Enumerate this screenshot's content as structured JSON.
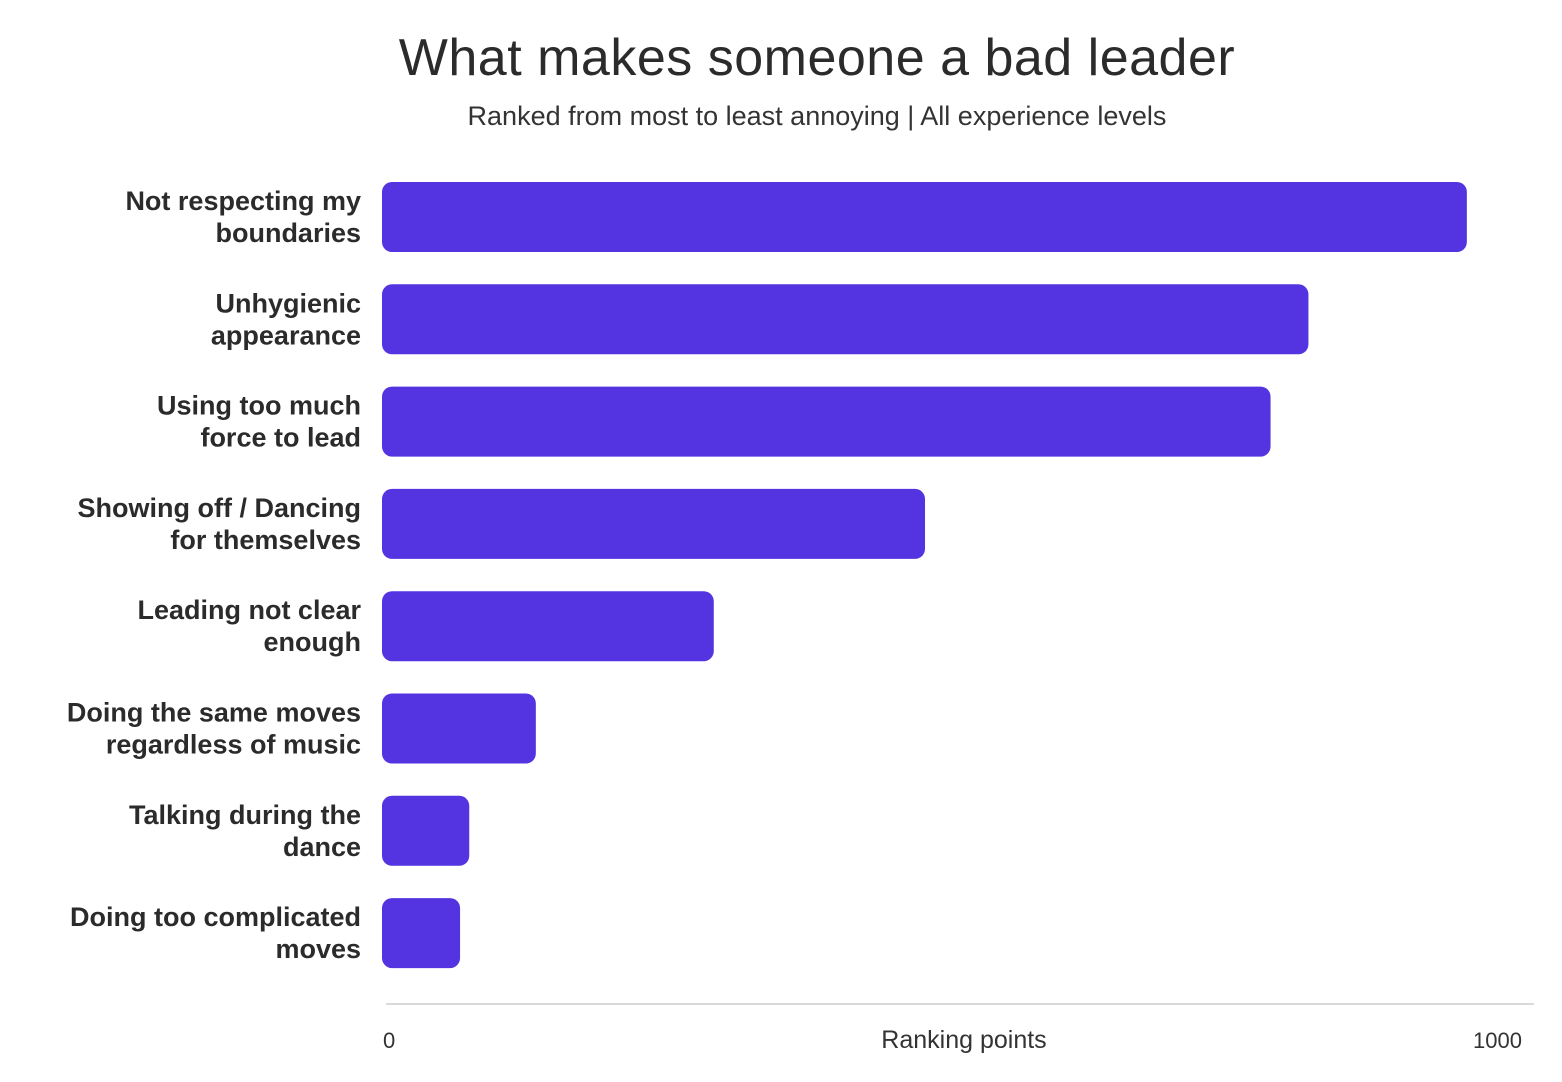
{
  "chart_data": {
    "type": "bar",
    "orientation": "horizontal",
    "title": "What makes someone a bad leader",
    "subtitle": "Ranked from most to least annoying | All experience levels",
    "xlabel": "Ranking points",
    "ylabel": "",
    "xlim": [
      0,
      1000
    ],
    "x_ticks": [
      "0",
      "1000"
    ],
    "grid": false,
    "legend": "none",
    "bar_color": "#5433E0",
    "categories": [
      [
        "Not respecting my",
        "boundaries"
      ],
      [
        "Unhygienic",
        "appearance"
      ],
      [
        "Using too much",
        "force to lead"
      ],
      [
        "Showing off / Dancing",
        "for themselves"
      ],
      [
        "Leading not clear",
        "enough"
      ],
      [
        "Doing the same moves",
        "regardless of music"
      ],
      [
        "Talking during the",
        "dance"
      ],
      [
        "Doing too complicated",
        "moves"
      ]
    ],
    "values": [
      945,
      807,
      774,
      473,
      289,
      134,
      76,
      68
    ]
  }
}
